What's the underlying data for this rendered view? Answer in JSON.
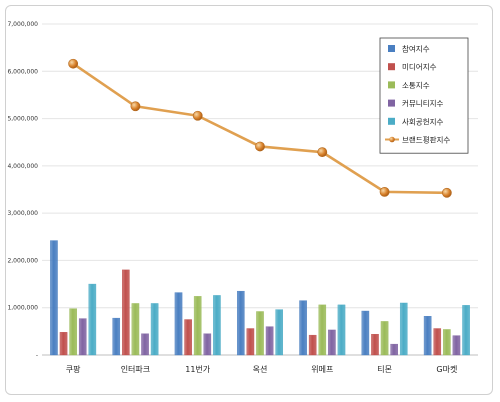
{
  "chart_data": {
    "type": "bar",
    "categories": [
      "쿠팡",
      "인터파크",
      "11번가",
      "옥션",
      "위메프",
      "티몬",
      "G마켓"
    ],
    "series": [
      {
        "name": "참여지수",
        "type": "bar",
        "color": "#4a7fc1",
        "values": [
          2420000,
          780000,
          1320000,
          1350000,
          1150000,
          930000,
          820000
        ]
      },
      {
        "name": "미디어지수",
        "type": "bar",
        "color": "#c0504d",
        "values": [
          480000,
          1800000,
          750000,
          560000,
          420000,
          440000,
          560000
        ]
      },
      {
        "name": "소통지수",
        "type": "bar",
        "color": "#9bbb59",
        "values": [
          980000,
          1090000,
          1240000,
          920000,
          1060000,
          710000,
          540000
        ]
      },
      {
        "name": "커뮤니티지수",
        "type": "bar",
        "color": "#8064a2",
        "values": [
          770000,
          450000,
          450000,
          600000,
          530000,
          230000,
          410000
        ]
      },
      {
        "name": "사회공헌지수",
        "type": "bar",
        "color": "#4bacc6",
        "values": [
          1500000,
          1090000,
          1260000,
          960000,
          1060000,
          1100000,
          1050000
        ]
      },
      {
        "name": "브랜드평판지수",
        "type": "line",
        "color": "#e0a050",
        "values": [
          6160000,
          5260000,
          5060000,
          4410000,
          4290000,
          3450000,
          3430000
        ]
      }
    ],
    "ylim": [
      0,
      7000000
    ],
    "yticks": [
      "-",
      "1,000,000",
      "2,000,000",
      "3,000,000",
      "4,000,000",
      "5,000,000",
      "6,000,000",
      "7,000,000"
    ],
    "grid": true,
    "legend": "top-right"
  }
}
